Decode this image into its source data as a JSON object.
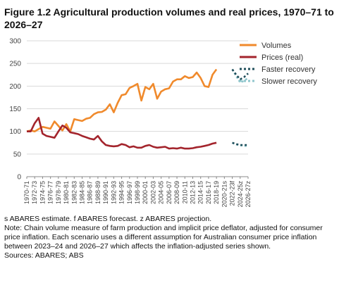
{
  "title": "Figure 1.2 Agricultural production volumes and real prices, 1970–71 to 2026–27",
  "notes": {
    "abbrev": "s ABARES estimate. f ABARES forecast. z ABARES projection.",
    "note": "Note: Chain volume measure of farm production and implicit price deflator, adjusted for consumer price inflation. Each scenario uses a different assumption for Australian consumer price inflation between 2023–24 and 2026–27 which affects the inflation-adjusted series shown.",
    "sources": "Sources: ABARES; ABS"
  },
  "colors": {
    "volumes": "#f08a2c",
    "prices": "#a3242c",
    "faster": "#1f4e5a",
    "slower": "#8fc6cc",
    "grid": "#d9d9d9"
  },
  "chart_data": {
    "type": "line",
    "ylim": [
      0,
      300
    ],
    "yticks": [
      0,
      50,
      100,
      150,
      200,
      250,
      300
    ],
    "x_labels": [
      "1970-71",
      "1972-73",
      "1974-75",
      "1976-77",
      "1978-79",
      "1980-81",
      "1982-83",
      "1984-85",
      "1986-87",
      "1988-89",
      "1990-91",
      "1992-93",
      "1994-95",
      "1996-97",
      "1998-99",
      "2000-01",
      "2002-03",
      "2004-05",
      "2006-07",
      "2008-09",
      "2010-11",
      "2012-13",
      "2014-15",
      "2016-17",
      "2018-19",
      "2020-21s",
      "2022-23f",
      "2024-25z",
      "2026-27z"
    ],
    "series": [
      {
        "name": "Volumes",
        "start_year": 1970,
        "values": [
          100,
          102,
          100,
          105,
          110,
          108,
          106,
          122,
          112,
          102,
          116,
          100,
          127,
          125,
          123,
          128,
          130,
          138,
          142,
          143,
          148,
          160,
          142,
          163,
          180,
          182,
          196,
          200,
          205,
          168,
          198,
          193,
          205,
          172,
          188,
          193,
          195,
          210,
          215,
          215,
          222,
          218,
          220,
          230,
          218,
          200,
          198,
          225,
          237
        ]
      },
      {
        "name": "Prices (real)",
        "start_year": 1970,
        "values": [
          100,
          100,
          118,
          130,
          95,
          90,
          88,
          86,
          100,
          113,
          108,
          98,
          96,
          94,
          90,
          87,
          84,
          82,
          90,
          78,
          70,
          68,
          67,
          68,
          72,
          70,
          65,
          67,
          64,
          64,
          68,
          70,
          66,
          64,
          65,
          66,
          62,
          63,
          62,
          64,
          62,
          62,
          63,
          65,
          66,
          68,
          70,
          73,
          75
        ]
      },
      {
        "name": "Faster recovery",
        "start_year": 2022,
        "values": [
          237,
          225,
          215,
          220,
          228
        ],
        "prices": [
          75,
          72,
          70,
          70,
          70
        ]
      },
      {
        "name": "Slower recovery",
        "start_year": 2022,
        "values": [
          237,
          222,
          208,
          212,
          218
        ],
        "prices": [
          75,
          71,
          69,
          68,
          68
        ]
      }
    ]
  }
}
